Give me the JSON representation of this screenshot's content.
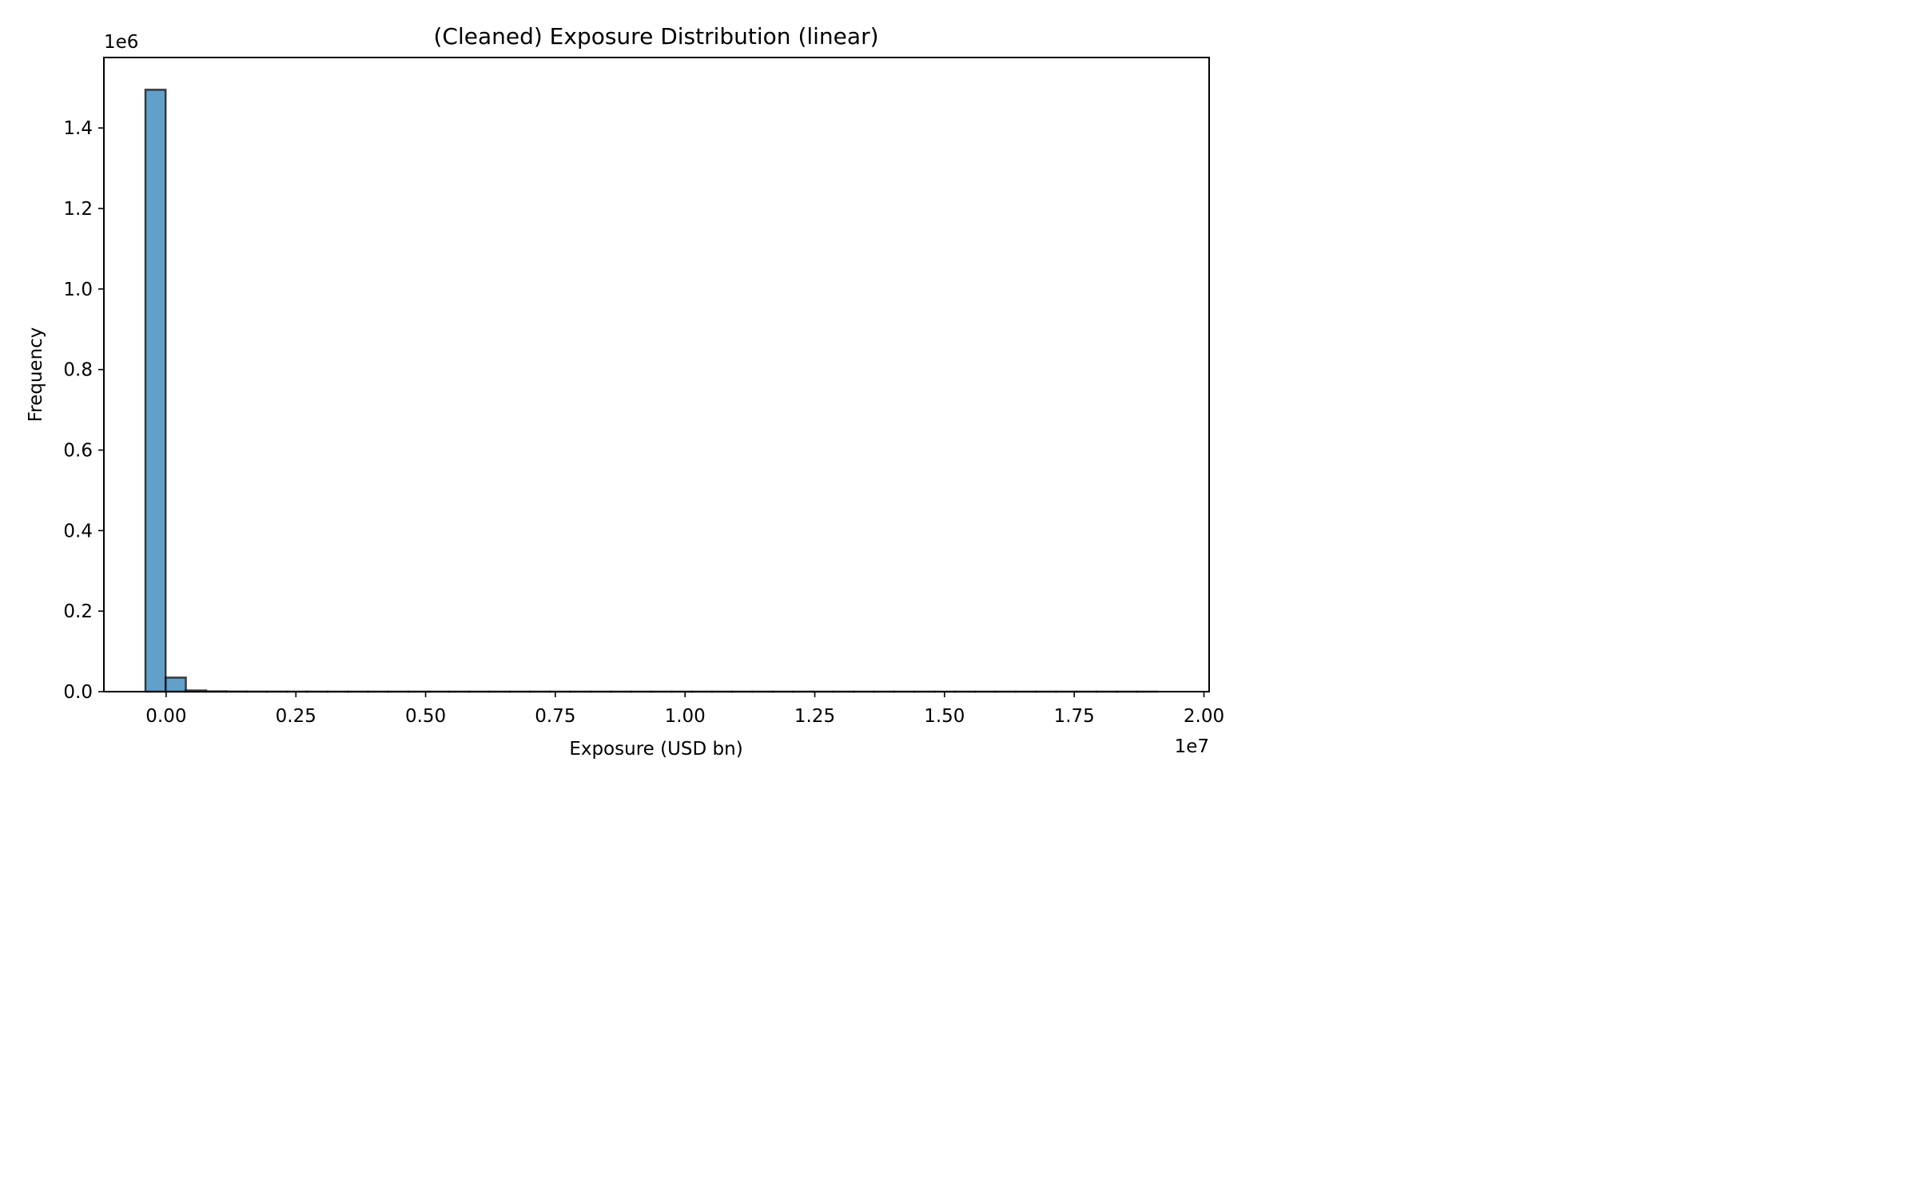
{
  "chart_data": {
    "type": "bar",
    "title": "(Cleaned) Exposure Distribution (linear)",
    "xlabel": "Exposure (USD bn)",
    "ylabel": "Frequency",
    "x_offset_label": "1e7",
    "y_offset_label": "1e6",
    "xlim": [
      -1200000,
      20100000
    ],
    "ylim": [
      0,
      1575000
    ],
    "x_scale_factor": 10000000,
    "y_scale_factor": 1000000,
    "xticks": [
      0,
      2500000,
      5000000,
      7500000,
      10000000,
      12500000,
      15000000,
      17500000,
      20000000
    ],
    "xtick_labels": [
      "0.00",
      "0.25",
      "0.50",
      "0.75",
      "1.00",
      "1.25",
      "1.50",
      "1.75",
      "2.00"
    ],
    "yticks": [
      0,
      200000,
      400000,
      600000,
      800000,
      1000000,
      1200000,
      1400000
    ],
    "ytick_labels": [
      "0.0",
      "0.2",
      "0.4",
      "0.6",
      "0.8",
      "1.0",
      "1.2",
      "1.4"
    ],
    "bin_start": -400000,
    "bin_width": 390000,
    "counts": [
      1495000,
      35000,
      3000,
      800,
      400,
      200,
      150,
      100,
      80,
      60,
      50,
      40,
      30,
      25,
      20,
      18,
      15,
      12,
      10,
      9,
      8,
      7,
      6,
      5,
      5,
      4,
      4,
      3,
      3,
      3,
      2,
      2,
      2,
      2,
      2,
      1,
      1,
      1,
      1,
      1,
      1,
      1,
      1,
      1,
      1,
      1,
      1,
      1,
      1,
      1
    ],
    "grid": false,
    "legend": false,
    "colors": {
      "bar_fill": "#1f77b4",
      "bar_edge": "#000000",
      "axes": "#000000"
    }
  }
}
